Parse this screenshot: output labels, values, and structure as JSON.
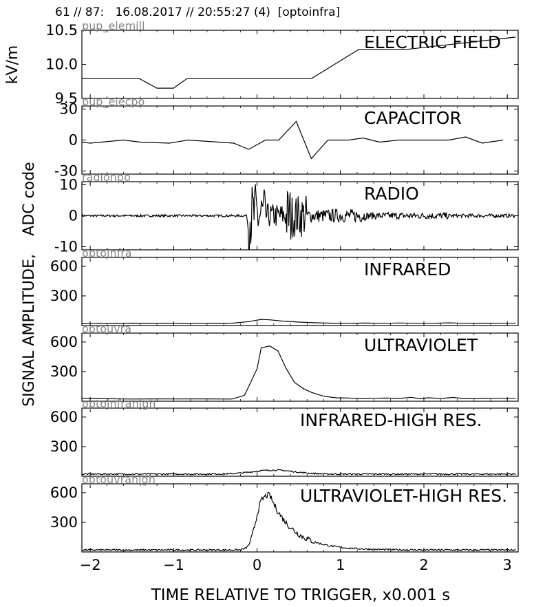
{
  "header": "61 // 87:   16.08.2017 // 20:55:27 (4)  [optoinfra]",
  "chart_data": {
    "type": "line",
    "xlabel": "TIME RELATIVE TO TRIGGER,   x0.001 s",
    "xlim": [
      -2.1,
      3.13
    ],
    "xticks": [
      -2,
      -1,
      0,
      1,
      2,
      3
    ],
    "ylabel_top": "kV/m",
    "ylabel_mid": "ADC code",
    "ylabel_main": "SIGNAL AMPLITUDE,",
    "panels": [
      {
        "id": "elemill",
        "tag": "pup_elemill",
        "title": "ELECTRIC FIELD",
        "ylim": [
          9.5,
          10.5
        ],
        "yticks": [
          9.5,
          10.0,
          10.5
        ],
        "ytick_labels": [
          "9.5",
          "10.0",
          "10.5"
        ],
        "kind": "poly",
        "x": [
          -2.1,
          -1.41,
          -1.2,
          -1.0,
          -0.84,
          0.65,
          1.22,
          1.8,
          3.1
        ],
        "y": [
          9.79,
          9.79,
          9.65,
          9.65,
          9.79,
          9.79,
          10.22,
          10.22,
          10.4
        ]
      },
      {
        "id": "capacitor",
        "tag": "pup_elecpo",
        "title": "CAPACITOR",
        "ylim": [
          -33,
          33
        ],
        "yticks": [
          -30,
          0,
          30
        ],
        "ytick_labels": [
          "-30",
          "0",
          "30"
        ],
        "kind": "poly",
        "x": [
          -2.1,
          -2.0,
          -1.6,
          -1.4,
          -1.05,
          -0.83,
          -0.28,
          -0.1,
          0.1,
          0.26,
          0.47,
          0.65,
          0.85,
          1.1,
          1.27,
          1.47,
          1.7,
          2.0,
          2.3,
          2.5,
          2.7,
          2.95
        ],
        "y": [
          -2,
          -3,
          0,
          -2,
          -3,
          0,
          -3,
          -9,
          0,
          0,
          18,
          -18,
          0,
          0,
          2,
          -2,
          0,
          0,
          0,
          3,
          -3,
          0
        ]
      },
      {
        "id": "radio",
        "tag": "radiohpo",
        "title": "RADIO",
        "ylim": [
          -11,
          11
        ],
        "yticks": [
          -10,
          0,
          10
        ],
        "ytick_labels": [
          "-10",
          "0",
          "10"
        ],
        "kind": "radio"
      },
      {
        "id": "infrared",
        "tag": "optoinfra",
        "title": "INFRARED",
        "ylim": [
          0,
          690
        ],
        "yticks": [
          300,
          600
        ],
        "ytick_labels": [
          "300",
          "600"
        ],
        "kind": "poly",
        "x": [
          -2.1,
          -1.9,
          -1.7,
          -1.5,
          -1.3,
          -1.1,
          -0.9,
          -0.7,
          -0.5,
          -0.3,
          -0.1,
          0.05,
          0.15,
          0.3,
          0.5,
          0.7,
          0.9,
          1.1,
          1.3,
          1.5,
          1.7,
          1.9,
          2.1,
          2.3,
          2.5,
          2.7,
          2.9,
          3.1
        ],
        "y": [
          18,
          22,
          20,
          24,
          21,
          23,
          20,
          22,
          21,
          24,
          40,
          62,
          58,
          45,
          35,
          28,
          24,
          22,
          25,
          22,
          26,
          23,
          22,
          27,
          22,
          24,
          23,
          22
        ]
      },
      {
        "id": "ultraviolet",
        "tag": "optouvra",
        "title": "ULTRAVIOLET",
        "ylim": [
          0,
          690
        ],
        "yticks": [
          300,
          600
        ],
        "ytick_labels": [
          "300",
          "600"
        ],
        "kind": "poly",
        "x": [
          -2.1,
          -1.8,
          -1.5,
          -1.2,
          -0.9,
          -0.6,
          -0.3,
          -0.15,
          0.0,
          0.05,
          0.15,
          0.25,
          0.35,
          0.45,
          0.55,
          0.65,
          0.8,
          0.95,
          1.1,
          1.25,
          1.4,
          1.55,
          1.7,
          1.85,
          1.95,
          2.05,
          2.2,
          2.35,
          2.5,
          2.7,
          2.9,
          3.1
        ],
        "y": [
          30,
          25,
          22,
          24,
          23,
          24,
          22,
          60,
          330,
          540,
          560,
          510,
          330,
          190,
          130,
          90,
          50,
          35,
          32,
          25,
          30,
          32,
          28,
          40,
          25,
          35,
          28,
          38,
          25,
          28,
          30,
          30
        ]
      },
      {
        "id": "irhigh",
        "tag": "optoinfrahigh",
        "title": "INFRARED-HIGH RES.",
        "ylim": [
          0,
          690
        ],
        "yticks": [
          300,
          600
        ],
        "ytick_labels": [
          "300",
          "600"
        ],
        "kind": "irhigh"
      },
      {
        "id": "uvhigh",
        "tag": "optouvrahigh",
        "title": "ULTRAVIOLET-HIGH RES.",
        "ylim": [
          0,
          690
        ],
        "yticks": [
          300,
          600
        ],
        "ytick_labels": [
          "300",
          "600"
        ],
        "kind": "uvhigh"
      }
    ]
  }
}
